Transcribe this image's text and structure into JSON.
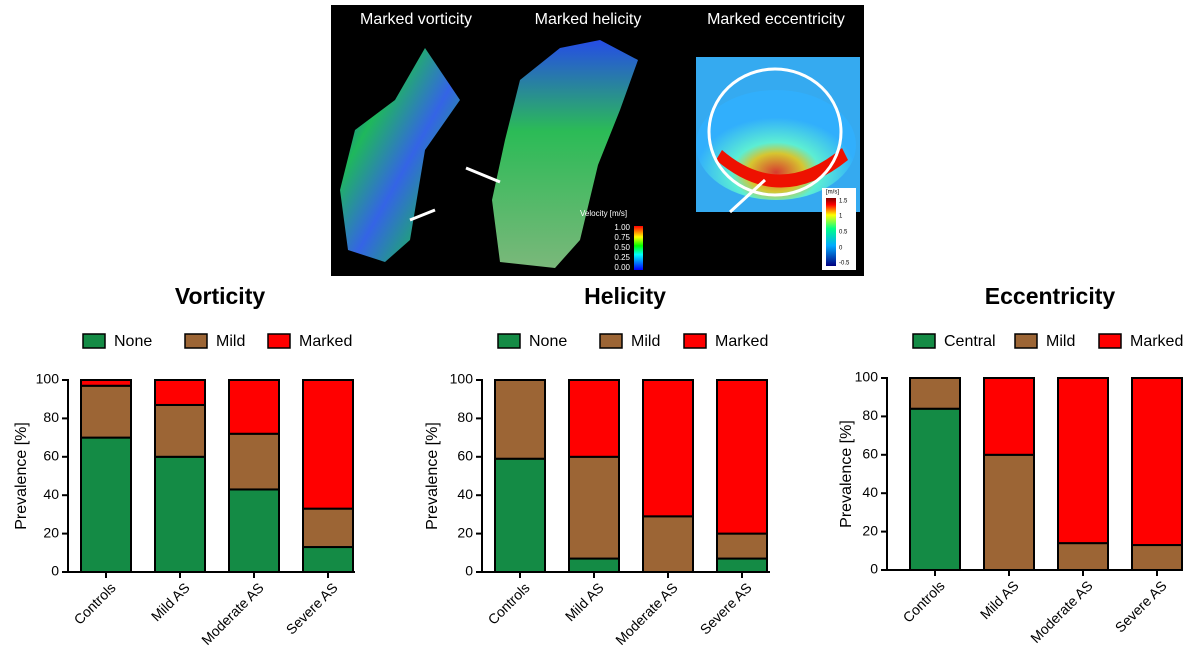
{
  "figure": {
    "panels": [
      "Marked vorticity",
      "Marked helicity",
      "Marked eccentricity"
    ],
    "velocity_legend": {
      "title": "Velocity [m/s]",
      "ticks": [
        "1.00",
        "0.75",
        "0.50",
        "0.25",
        "0.00"
      ]
    },
    "eccentricity_legend": {
      "title": "[m/s]",
      "ticks": [
        "1.5",
        "1",
        "0.5",
        "0",
        "-0.5"
      ]
    }
  },
  "chart_data": [
    {
      "type": "stacked_bar",
      "title": "Vorticity",
      "ylabel": "Prevalence [%]",
      "categories": [
        "Controls",
        "Mild AS",
        "Moderate AS",
        "Severe AS"
      ],
      "series": [
        {
          "name": "None",
          "color": "#148b45",
          "values": [
            70,
            60,
            43,
            13
          ]
        },
        {
          "name": "Mild",
          "color": "#9c6535",
          "values": [
            27,
            27,
            29,
            20
          ]
        },
        {
          "name": "Marked",
          "color": "#ff0000",
          "values": [
            3,
            13,
            28,
            67
          ]
        }
      ],
      "ylim": [
        0,
        100
      ],
      "yticks": [
        0,
        20,
        40,
        60,
        80,
        100
      ],
      "legend": "top"
    },
    {
      "type": "stacked_bar",
      "title": "Helicity",
      "ylabel": "Prevalence [%]",
      "categories": [
        "Controls",
        "Mild AS",
        "Moderate AS",
        "Severe AS"
      ],
      "series": [
        {
          "name": "None",
          "color": "#148b45",
          "values": [
            59,
            7,
            0,
            7
          ]
        },
        {
          "name": "Mild",
          "color": "#9c6535",
          "values": [
            41,
            53,
            29,
            13
          ]
        },
        {
          "name": "Marked",
          "color": "#ff0000",
          "values": [
            0,
            40,
            71,
            80
          ]
        }
      ],
      "ylim": [
        0,
        100
      ],
      "yticks": [
        0,
        20,
        40,
        60,
        80,
        100
      ],
      "legend": "top"
    },
    {
      "type": "stacked_bar",
      "title": "Eccentricity",
      "ylabel": "Prevalence [%]",
      "categories": [
        "Controls",
        "Mild AS",
        "Moderate AS",
        "Severe AS"
      ],
      "series": [
        {
          "name": "Central",
          "color": "#148b45",
          "values": [
            84,
            0,
            0,
            0
          ]
        },
        {
          "name": "Mild",
          "color": "#9c6535",
          "values": [
            16,
            60,
            14,
            13
          ]
        },
        {
          "name": "Marked",
          "color": "#ff0000",
          "values": [
            0,
            40,
            86,
            87
          ]
        }
      ],
      "ylim": [
        0,
        100
      ],
      "yticks": [
        0,
        20,
        40,
        60,
        80,
        100
      ],
      "legend": "top"
    }
  ]
}
